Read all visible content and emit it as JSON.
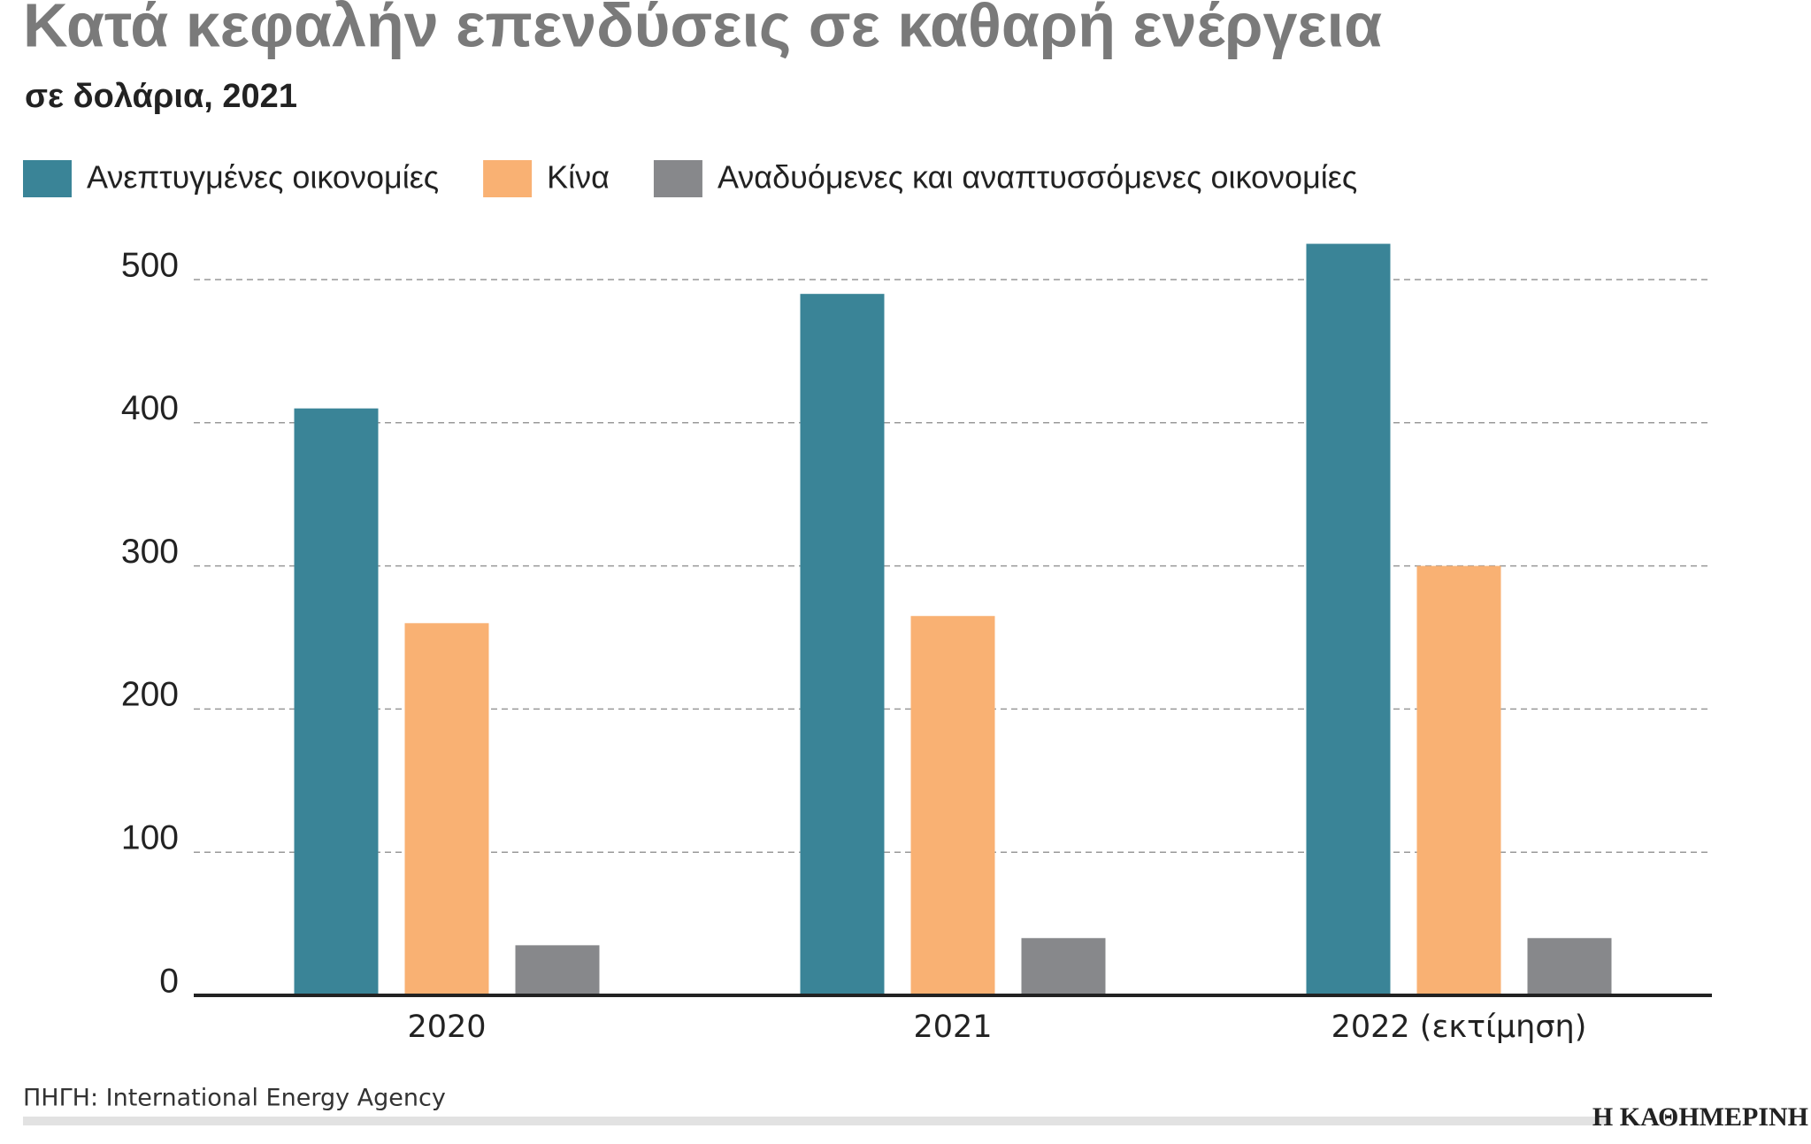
{
  "chart_data": {
    "type": "bar",
    "title": "Κατά κεφαλήν επενδύσεις σε καθαρή ενέργεια",
    "subtitle": "σε δολάρια, 2021",
    "categories": [
      "2020",
      "2021",
      "2022 (εκτίμηση)"
    ],
    "series": [
      {
        "name": "Ανεπτυγμένες οικονομίες",
        "color": "#3a8497",
        "values": [
          410,
          490,
          525
        ]
      },
      {
        "name": "Κίνα",
        "color": "#f9b173",
        "values": [
          260,
          265,
          300
        ]
      },
      {
        "name": "Αναδυόμενες και αναπτυσσόμενες οικονομίες",
        "color": "#87888b",
        "values": [
          35,
          40,
          40
        ]
      }
    ],
    "ylim": [
      0,
      500
    ],
    "yticks": [
      0,
      100,
      200,
      300,
      400,
      500
    ],
    "grid": true,
    "source": "ΠΗΓΗ: International Energy Agency",
    "logo": "Η ΚΑΘΗΜΕΡΙΝΗ"
  }
}
